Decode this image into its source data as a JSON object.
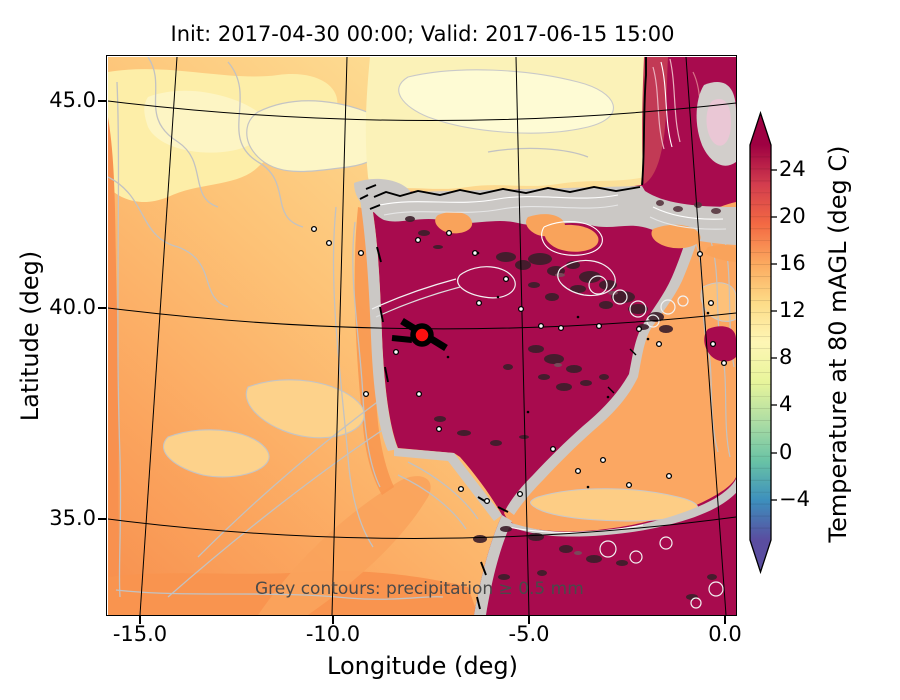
{
  "title": "Init: 2017-04-30 00:00; Valid: 2017-06-15 15:00",
  "axes": {
    "x": {
      "label": "Longitude (deg)",
      "ticks": [
        "-15.0",
        "-10.0",
        "-5.0",
        "0.0"
      ]
    },
    "y": {
      "label": "Latitude (deg)",
      "ticks": [
        "45.0",
        "40.0",
        "35.0"
      ]
    }
  },
  "colorbar": {
    "label": "Temperature at 80 mAGL (deg C)",
    "ticks": [
      "24",
      "20",
      "16",
      "12",
      "8",
      "4",
      "0",
      "−4"
    ],
    "colormap": "Spectral reversed",
    "extended_both_ends": true
  },
  "annotation": "Grey contours: precipitation ≥ 0.5 mm",
  "marker": {
    "type": "station-marker",
    "style": "red circle, black edge",
    "color": "#fe1010"
  },
  "chart_data": {
    "type": "heatmap",
    "title": "Init: 2017-04-30 00:00; Valid: 2017-06-15 15:00",
    "xlabel": "Longitude (deg)",
    "ylabel": "Latitude (deg)",
    "x_ticks": [
      -15.0,
      -10.0,
      -5.0,
      0.0
    ],
    "y_ticks": [
      45.0,
      40.0,
      35.0
    ],
    "xlim_approx": [
      -15.9,
      0.5
    ],
    "ylim_approx": [
      32.7,
      46.2
    ],
    "field": "Temperature at 80 mAGL (deg C)",
    "colorbar_ticks": [
      24,
      20,
      16,
      12,
      8,
      4,
      0,
      -4
    ],
    "colorbar_range_c": [
      -7,
      26
    ],
    "colormap_stops": [
      "#5e4fa2",
      "#3288bd",
      "#66c2a5",
      "#abdda4",
      "#e6f598",
      "#ffffbf",
      "#fee08b",
      "#fdae61",
      "#f46d43",
      "#d53e4f",
      "#9e0142"
    ],
    "grid": true,
    "graticule": "curved (conic projection), black lines every 5 deg",
    "regions": [
      {
        "name": "iberia-and-france-interior",
        "approx_temp_c": "above 26",
        "color": "#a80b4e"
      },
      {
        "name": "atlantic-northwest",
        "approx_temp_c": "12 to 14",
        "color": "#fdf0ac"
      },
      {
        "name": "atlantic-west",
        "approx_temp_c": "16 to 19",
        "color": "#fdbd72"
      },
      {
        "name": "bay-of-biscay",
        "approx_temp_c": "12 to 14",
        "color": "#fbf2b8"
      },
      {
        "name": "alboran-mediterranean",
        "approx_temp_c": "17 to 20",
        "color": "#fba762"
      }
    ],
    "overlays": [
      "grey contour lines: precipitation ≥ 0.5 mm",
      "dark shaded precipitation cells over NE and central Spain and N Africa",
      "red circle station marker near 7.5W 39.5N"
    ]
  }
}
